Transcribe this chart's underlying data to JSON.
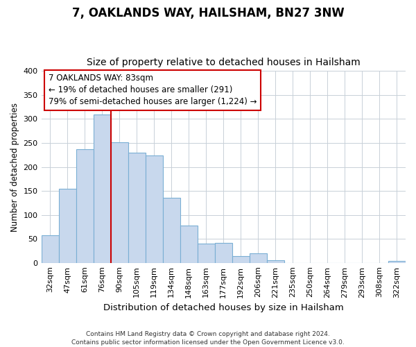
{
  "title": "7, OAKLANDS WAY, HAILSHAM, BN27 3NW",
  "subtitle": "Size of property relative to detached houses in Hailsham",
  "xlabel": "Distribution of detached houses by size in Hailsham",
  "ylabel": "Number of detached properties",
  "bar_labels": [
    "32sqm",
    "47sqm",
    "61sqm",
    "76sqm",
    "90sqm",
    "105sqm",
    "119sqm",
    "134sqm",
    "148sqm",
    "163sqm",
    "177sqm",
    "192sqm",
    "206sqm",
    "221sqm",
    "235sqm",
    "250sqm",
    "264sqm",
    "279sqm",
    "293sqm",
    "308sqm",
    "322sqm"
  ],
  "bar_values": [
    57,
    154,
    237,
    310,
    252,
    230,
    224,
    135,
    78,
    40,
    41,
    14,
    20,
    6,
    0,
    0,
    0,
    0,
    0,
    0,
    4
  ],
  "bar_color": "#c8d8ed",
  "bar_edge_color": "#7aafd4",
  "vline_color": "#cc0000",
  "annotation_text": "7 OAKLANDS WAY: 83sqm\n← 19% of detached houses are smaller (291)\n79% of semi-detached houses are larger (1,224) →",
  "annotation_box_edge": "#cc0000",
  "ylim": [
    0,
    400
  ],
  "yticks": [
    0,
    50,
    100,
    150,
    200,
    250,
    300,
    350,
    400
  ],
  "footer": "Contains HM Land Registry data © Crown copyright and database right 2024.\nContains public sector information licensed under the Open Government Licence v3.0.",
  "title_fontsize": 12,
  "subtitle_fontsize": 10,
  "xlabel_fontsize": 9.5,
  "ylabel_fontsize": 8.5,
  "tick_fontsize": 8,
  "annotation_fontsize": 8.5,
  "footer_fontsize": 6.5
}
